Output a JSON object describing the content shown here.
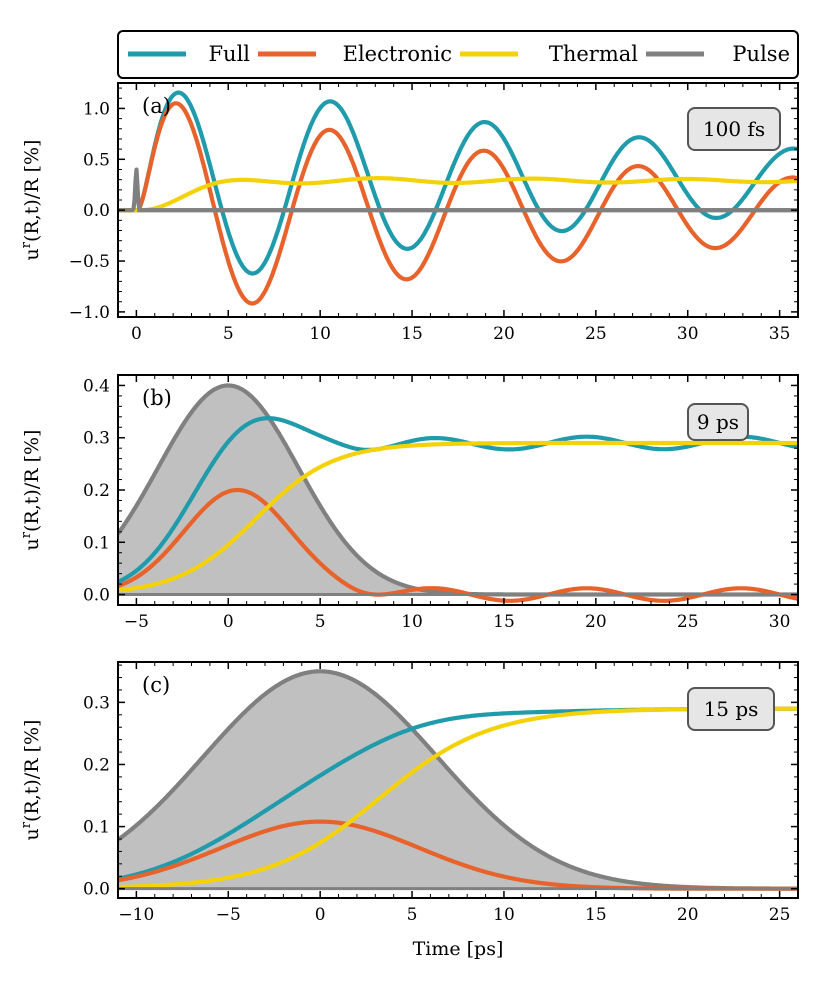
{
  "legend": {
    "items": [
      {
        "label": "Full",
        "color": "#1f9bab"
      },
      {
        "label": "Electronic",
        "color": "#e8622b"
      },
      {
        "label": "Thermal",
        "color": "#f4d20a"
      },
      {
        "label": "Pulse",
        "color": "#808080"
      }
    ]
  },
  "colors": {
    "full": "#1f9bab",
    "electronic": "#e8622b",
    "thermal": "#f4d20a",
    "pulse": "#808080",
    "fill": "#c0c0c0"
  },
  "xlabel": "Time [ps]",
  "ylabel": "u^r(R,t)/R [%]",
  "chart_data": [
    {
      "type": "line",
      "tag": "(a)",
      "badge": "100 fs",
      "xlim": [
        -1,
        36
      ],
      "ylim": [
        -1.05,
        1.25
      ],
      "xticks": [
        0,
        5,
        10,
        15,
        20,
        25,
        30,
        35
      ],
      "yticks": [
        -1.0,
        -0.5,
        0.0,
        0.5,
        1.0
      ],
      "ytick_labels": [
        "−1.0",
        "−0.5",
        "0.0",
        "0.5",
        "1.0"
      ],
      "pulse": {
        "center": 0,
        "sigma": 0.05,
        "peak": 0.4,
        "filled": false
      },
      "thermal": {
        "amp": 0.29,
        "t0": 0.5,
        "tau": 1.6,
        "osc": 0.03,
        "period": 8.4,
        "decay": 30
      },
      "electronic": {
        "amp": 1.0,
        "period": 8.4,
        "decay": 30,
        "t0": 0.0
      },
      "full_offset_shift": 0.0,
      "series": [
        {
          "name": "Full",
          "color": "#1f9bab"
        },
        {
          "name": "Electronic",
          "color": "#e8622b"
        },
        {
          "name": "Thermal",
          "color": "#f4d20a"
        },
        {
          "name": "Pulse",
          "color": "#808080"
        }
      ]
    },
    {
      "type": "line",
      "tag": "(b)",
      "badge": "9 ps",
      "xlim": [
        -6,
        31
      ],
      "ylim": [
        -0.02,
        0.42
      ],
      "xticks": [
        -5,
        0,
        5,
        10,
        15,
        20,
        25,
        30
      ],
      "yticks": [
        0.0,
        0.1,
        0.2,
        0.3,
        0.4
      ],
      "ytick_labels": [
        "0.0",
        "0.1",
        "0.2",
        "0.3",
        "0.4"
      ],
      "pulse": {
        "center": 0,
        "sigma": 3.82,
        "peak": 0.4,
        "filled": true
      },
      "thermal_plateau": 0.29,
      "electronic_peak": 0.2,
      "series": [
        {
          "name": "Full",
          "color": "#1f9bab"
        },
        {
          "name": "Electronic",
          "color": "#e8622b"
        },
        {
          "name": "Thermal",
          "color": "#f4d20a"
        },
        {
          "name": "Pulse",
          "color": "#808080"
        }
      ]
    },
    {
      "type": "line",
      "tag": "(c)",
      "badge": "15 ps",
      "xlim": [
        -11,
        26
      ],
      "ylim": [
        -0.015,
        0.365
      ],
      "xticks": [
        -10,
        -5,
        0,
        5,
        10,
        15,
        20,
        25
      ],
      "yticks": [
        0.0,
        0.1,
        0.2,
        0.3
      ],
      "ytick_labels": [
        "0.0",
        "0.1",
        "0.2",
        "0.3"
      ],
      "pulse": {
        "center": 0,
        "sigma": 6.37,
        "peak": 0.35,
        "filled": true
      },
      "thermal_plateau": 0.29,
      "electronic_peak": 0.11,
      "series": [
        {
          "name": "Full",
          "color": "#1f9bab"
        },
        {
          "name": "Electronic",
          "color": "#e8622b"
        },
        {
          "name": "Thermal",
          "color": "#f4d20a"
        },
        {
          "name": "Pulse",
          "color": "#808080"
        }
      ]
    }
  ]
}
